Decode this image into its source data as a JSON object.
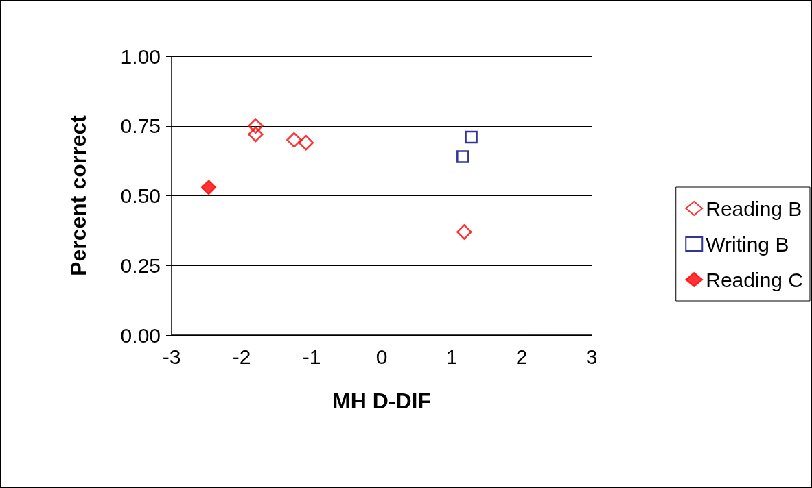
{
  "chart_data": {
    "type": "scatter",
    "xlabel": "MH D-DIF",
    "ylabel": "Percent correct",
    "xlim": [
      -3,
      3
    ],
    "xticks": [
      -3,
      -2,
      -1,
      0,
      1,
      2,
      3
    ],
    "ylim": [
      0,
      1
    ],
    "yticks": [
      {
        "value": 0,
        "label": "0.00"
      },
      {
        "value": 0.25,
        "label": "0.25"
      },
      {
        "value": 0.5,
        "label": "0.50"
      },
      {
        "value": 0.75,
        "label": "0.75"
      },
      {
        "value": 1,
        "label": "1.00"
      }
    ],
    "grid": "y",
    "legend": "right",
    "series": [
      {
        "name": "Reading B",
        "color": "#ff0000",
        "marker": "diamond",
        "x": [
          -1.8,
          -1.8,
          -1.25,
          -1.08,
          1.18
        ],
        "values": [
          0.75,
          0.72,
          0.7,
          0.69,
          0.37
        ]
      },
      {
        "name": "Writing B",
        "color": "#000080",
        "marker": "square",
        "x": [
          1.16,
          1.28
        ],
        "values": [
          0.64,
          0.71
        ]
      },
      {
        "name": "Reading C",
        "color": "#ff0000",
        "marker": "diamond",
        "x": [
          -2.47
        ],
        "values": [
          0.53
        ]
      }
    ]
  }
}
